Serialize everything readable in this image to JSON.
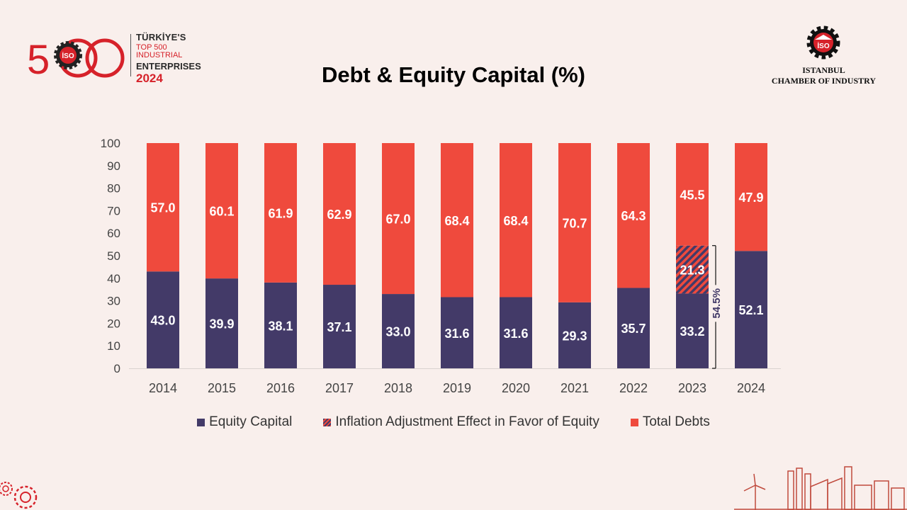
{
  "header": {
    "logo_number": "500",
    "logo_mark": "İSO",
    "logo_line1": "TÜRKİYE'S",
    "logo_line2": "TOP 500 INDUSTRIAL",
    "logo_line3": "ENTERPRISES",
    "logo_year": "2024",
    "org_line1": "ISTANBUL",
    "org_line2": "CHAMBER OF INDUSTRY"
  },
  "chart_data": {
    "type": "bar",
    "stacked": true,
    "title": "Debt & Equity Capital (%)",
    "categories": [
      "2014",
      "2015",
      "2016",
      "2017",
      "2018",
      "2019",
      "2020",
      "2021",
      "2022",
      "2023",
      "2024"
    ],
    "series": [
      {
        "name": "Equity Capital",
        "color": "#433a68",
        "values": [
          43.0,
          39.9,
          38.1,
          37.1,
          33.0,
          31.6,
          31.6,
          29.3,
          35.7,
          33.2,
          52.1
        ]
      },
      {
        "name": "Inflation Adjustment Effect in Favor of Equity",
        "color": "#ef4a3d",
        "pattern": "hatched",
        "values": [
          0,
          0,
          0,
          0,
          0,
          0,
          0,
          0,
          0,
          21.3,
          0
        ]
      },
      {
        "name": "Total Debts",
        "color": "#ef4a3d",
        "values": [
          57.0,
          60.1,
          61.9,
          62.9,
          67.0,
          68.4,
          68.4,
          70.7,
          64.3,
          45.5,
          47.9
        ]
      }
    ],
    "labels": {
      "equity": [
        "43.0",
        "39.9",
        "38.1",
        "37.1",
        "33.0",
        "31.6",
        "31.6",
        "29.3",
        "35.7",
        "33.2",
        "52.1"
      ],
      "inflation": [
        "",
        "",
        "",
        "",
        "",
        "",
        "",
        "",
        "",
        "21.3",
        ""
      ],
      "debt": [
        "57.0",
        "60.1",
        "61.9",
        "62.9",
        "67.0",
        "68.4",
        "68.4",
        "70.7",
        "64.3",
        "45.5",
        "47.9"
      ]
    },
    "ylim": [
      0,
      100
    ],
    "yticks": [
      "0",
      "10",
      "20",
      "30",
      "40",
      "50",
      "60",
      "70",
      "80",
      "90",
      "100"
    ],
    "annotation": {
      "category": "2023",
      "text": "54.5%",
      "from": 0,
      "to": 54.5
    },
    "legend_position": "bottom",
    "grid": false
  }
}
